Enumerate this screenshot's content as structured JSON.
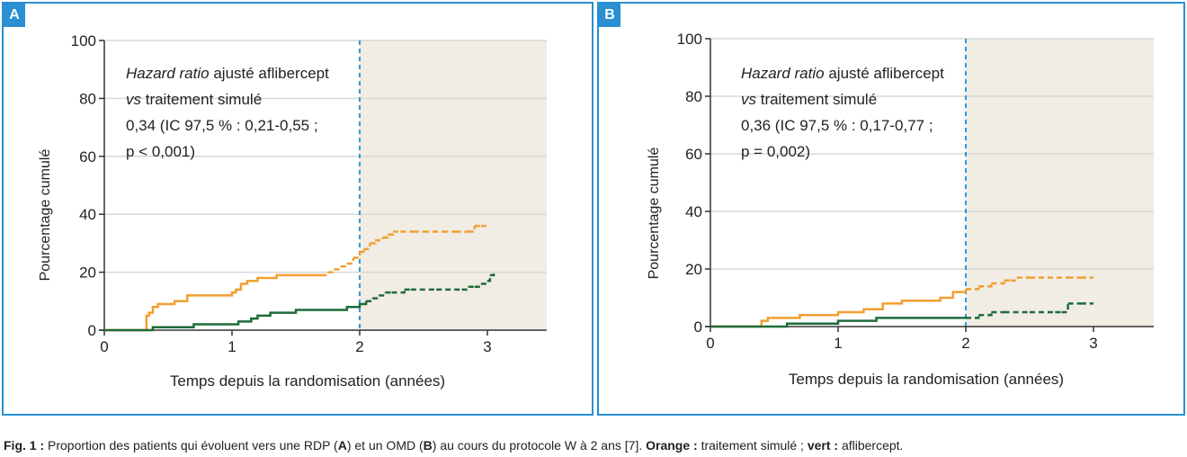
{
  "caption": {
    "prefix": "Fig. 1 :",
    "text1": " Proportion des patients qui évoluent vers une RDP (",
    "a": "A",
    "text2": ") et un OMD (",
    "b": "B",
    "text3": ") au cours du protocole W à 2 ans [7]. ",
    "orange_label": "Orange :",
    "orange_text": " traitement simulé ; ",
    "green_label": "vert :",
    "green_text": " aflibercept."
  },
  "colors": {
    "orange": "#f0a030",
    "green": "#1e6b3a",
    "frame": "#2a8fd3",
    "shade": "#f1ece4",
    "divider": "#2a9ad8"
  },
  "chart_data": [
    {
      "panel": "A",
      "type": "line",
      "step": true,
      "xlabel": "Temps depuis la randomisation (années)",
      "ylabel": "Pourcentage cumulé",
      "xlim": [
        0,
        3.5
      ],
      "ylim": [
        0,
        100
      ],
      "xticks": [
        "0",
        "1",
        "2",
        "3"
      ],
      "yticks": [
        "0",
        "20",
        "40",
        "60",
        "80",
        "100"
      ],
      "grid": true,
      "annotation": {
        "italic1": "Hazard ratio",
        "line1": " ajusté aflibercept",
        "italic2": "vs",
        "line2": " traitement simulé",
        "line3": "0,34 (IC 97,5 % : 0,21-0,55 ;",
        "line4": "p < 0,001)"
      },
      "vertical_line_x": 2,
      "series": [
        {
          "color": "orange",
          "solid_until": 1.7,
          "x": [
            0,
            0.32,
            0.33,
            0.35,
            0.38,
            0.42,
            0.5,
            0.55,
            0.65,
            0.9,
            1.0,
            1.03,
            1.07,
            1.12,
            1.18,
            1.2,
            1.25,
            1.3,
            1.35,
            1.45,
            1.7,
            1.75,
            1.8,
            1.85,
            1.9,
            1.95,
            2.0,
            2.03,
            2.08,
            2.12,
            2.18,
            2.22,
            2.26,
            2.32,
            2.42,
            2.5,
            2.65,
            2.75,
            2.85,
            2.9,
            2.95,
            3.0
          ],
          "y": [
            0,
            0,
            5,
            6,
            8,
            9,
            9,
            10,
            12,
            12,
            13,
            14,
            16,
            17,
            17,
            18,
            18,
            18,
            19,
            19,
            19,
            20,
            21,
            22,
            23,
            25,
            27,
            28,
            30,
            31,
            32,
            33,
            34,
            34,
            34,
            34,
            34,
            34,
            34,
            36,
            36,
            36
          ]
        },
        {
          "color": "green",
          "solid_until": 2.05,
          "x": [
            0,
            0.38,
            0.5,
            0.6,
            0.7,
            0.9,
            1.0,
            1.05,
            1.1,
            1.15,
            1.2,
            1.25,
            1.3,
            1.4,
            1.5,
            1.6,
            1.8,
            1.9,
            1.95,
            2.0,
            2.05,
            2.1,
            2.15,
            2.2,
            2.25,
            2.35,
            2.4,
            2.6,
            2.8,
            2.85,
            2.9,
            2.95,
            3.0,
            3.02,
            3.05
          ],
          "y": [
            0,
            1,
            1,
            1,
            2,
            2,
            2,
            3,
            3,
            4,
            5,
            5,
            6,
            6,
            7,
            7,
            7,
            8,
            8,
            9,
            10,
            11,
            12,
            13,
            13,
            14,
            14,
            14,
            14,
            15,
            15,
            16,
            17,
            19,
            20
          ]
        }
      ]
    },
    {
      "panel": "B",
      "type": "line",
      "step": true,
      "xlabel": "Temps depuis la randomisation (années)",
      "ylabel": "Pourcentage cumulé",
      "xlim": [
        0,
        3.5
      ],
      "ylim": [
        0,
        100
      ],
      "xticks": [
        "0",
        "1",
        "2",
        "3"
      ],
      "yticks": [
        "0",
        "20",
        "40",
        "60",
        "80",
        "100"
      ],
      "grid": true,
      "annotation": {
        "italic1": "Hazard ratio",
        "line1": " ajusté aflibercept",
        "italic2": "vs",
        "line2": " traitement simulé",
        "line3": "0,36 (IC 97,5 % : 0,17-0,77 ;",
        "line4": "p = 0,002)"
      },
      "vertical_line_x": 2,
      "series": [
        {
          "color": "orange",
          "solid_until": 2.0,
          "x": [
            0,
            0.4,
            0.45,
            0.5,
            0.7,
            0.85,
            1.0,
            1.1,
            1.2,
            1.3,
            1.35,
            1.5,
            1.6,
            1.8,
            1.9,
            1.95,
            2.0,
            2.1,
            2.2,
            2.3,
            2.35,
            2.4,
            2.5,
            2.8,
            2.9,
            3.0
          ],
          "y": [
            0,
            2,
            3,
            3,
            4,
            4,
            5,
            5,
            6,
            6,
            8,
            9,
            9,
            10,
            12,
            12,
            13,
            14,
            15,
            16,
            16,
            17,
            17,
            17,
            17,
            17
          ]
        },
        {
          "color": "green",
          "solid_until": 2.0,
          "x": [
            0,
            0.6,
            0.8,
            1.0,
            1.1,
            1.3,
            1.5,
            1.8,
            1.9,
            2.0,
            2.1,
            2.2,
            2.3,
            2.5,
            2.7,
            2.75,
            2.8,
            2.9,
            3.0
          ],
          "y": [
            0,
            1,
            1,
            2,
            2,
            3,
            3,
            3,
            3,
            3,
            4,
            5,
            5,
            5,
            5,
            5,
            8,
            8,
            8
          ]
        }
      ]
    }
  ]
}
